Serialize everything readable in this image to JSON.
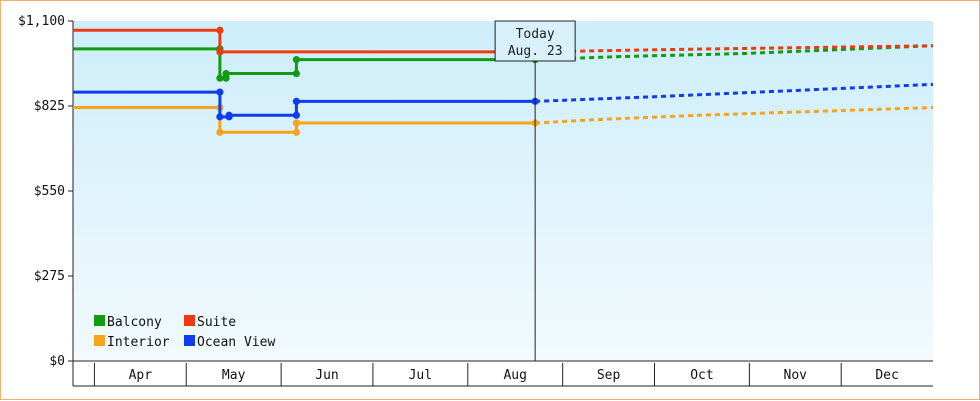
{
  "chart_data": {
    "type": "line",
    "title": "",
    "xlabel": "",
    "ylabel": "",
    "y_ticks": [
      "$0",
      "$275",
      "$550",
      "$825",
      "$1,100"
    ],
    "ylim": [
      0,
      1100
    ],
    "xlim": [
      "2023-03-25",
      "2023-12-31"
    ],
    "x_months": [
      "Apr",
      "May",
      "Jun",
      "Jul",
      "Aug",
      "Sep",
      "Oct",
      "Nov",
      "Dec"
    ],
    "today": {
      "line1": "Today",
      "line2": "Aug. 23",
      "date": "2023-08-23"
    },
    "legend_placement": "bottom-left",
    "series": [
      {
        "name": "Balcony",
        "color": "#129a12",
        "points": [
          [
            "2023-03-25",
            1010
          ],
          [
            "2023-05-12",
            1010
          ],
          [
            "2023-05-12",
            915
          ],
          [
            "2023-05-14",
            915
          ],
          [
            "2023-05-14",
            930
          ],
          [
            "2023-06-06",
            930
          ],
          [
            "2023-06-06",
            975
          ],
          [
            "2023-08-23",
            975
          ]
        ],
        "forecast": [
          [
            "2023-08-23",
            975
          ],
          [
            "2023-09-20",
            985
          ],
          [
            "2023-10-31",
            995
          ],
          [
            "2023-12-31",
            1020
          ]
        ]
      },
      {
        "name": "Suite",
        "color": "#ee3a10",
        "points": [
          [
            "2023-03-25",
            1070
          ],
          [
            "2023-05-12",
            1070
          ],
          [
            "2023-05-12",
            1000
          ],
          [
            "2023-08-23",
            1000
          ]
        ],
        "forecast": [
          [
            "2023-08-23",
            1000
          ],
          [
            "2023-10-01",
            1007
          ],
          [
            "2023-12-31",
            1020
          ]
        ]
      },
      {
        "name": "Interior",
        "color": "#f7a31b",
        "points": [
          [
            "2023-03-25",
            820
          ],
          [
            "2023-05-12",
            820
          ],
          [
            "2023-05-12",
            740
          ],
          [
            "2023-06-06",
            740
          ],
          [
            "2023-06-06",
            770
          ],
          [
            "2023-08-23",
            770
          ]
        ],
        "forecast": [
          [
            "2023-08-23",
            770
          ],
          [
            "2023-09-10",
            780
          ],
          [
            "2023-10-15",
            795
          ],
          [
            "2023-12-31",
            820
          ]
        ]
      },
      {
        "name": "Ocean View",
        "color": "#0f3cf0",
        "points": [
          [
            "2023-03-25",
            870
          ],
          [
            "2023-05-12",
            870
          ],
          [
            "2023-05-12",
            790
          ],
          [
            "2023-05-15",
            790
          ],
          [
            "2023-05-15",
            795
          ],
          [
            "2023-06-06",
            795
          ],
          [
            "2023-06-06",
            840
          ],
          [
            "2023-08-23",
            840
          ]
        ],
        "forecast": [
          [
            "2023-08-23",
            840
          ],
          [
            "2023-10-01",
            855
          ],
          [
            "2023-12-31",
            895
          ]
        ]
      }
    ]
  }
}
